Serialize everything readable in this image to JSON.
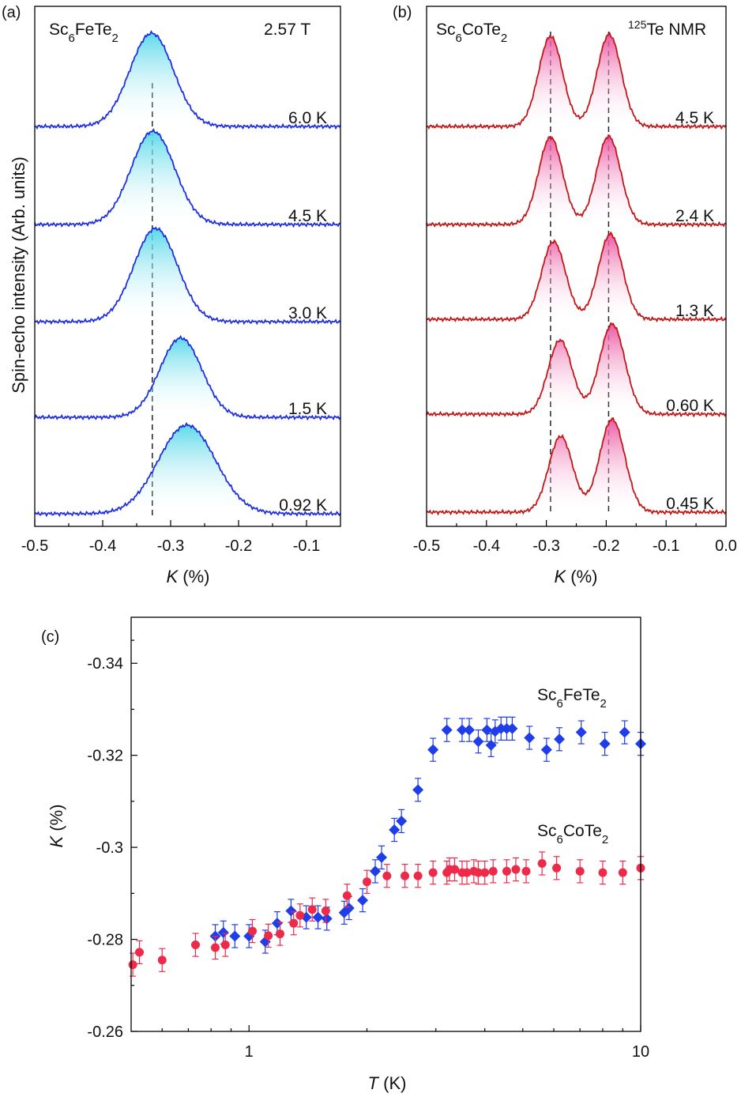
{
  "chart_data": [
    {
      "type": "line",
      "panel": "(a)",
      "sample": "Sc6FeTe2",
      "annotation": "2.57 T",
      "ylabel": "Spin-echo intensity (Arb. units)",
      "xlabel_var": "K",
      "xlabel_unit": " (%)",
      "xlim": [
        -0.5,
        -0.05
      ],
      "xticks": [
        -0.5,
        -0.4,
        -0.3,
        -0.2,
        -0.1
      ],
      "xtick_labels": [
        "-0.5",
        "-0.4",
        "-0.3",
        "-0.2",
        "-0.1"
      ],
      "dashed_lines": [
        -0.327
      ],
      "color": "#1f2fe0",
      "fill_color": "#5ee0ec",
      "spectra": [
        {
          "temperature": "6.0 K",
          "peaks": [
            {
              "center": -0.328,
              "width": 0.032,
              "height": 1.0
            }
          ]
        },
        {
          "temperature": "4.5 K",
          "peaks": [
            {
              "center": -0.326,
              "width": 0.032,
              "height": 1.0
            }
          ]
        },
        {
          "temperature": "3.0 K",
          "peaks": [
            {
              "center": -0.322,
              "width": 0.032,
              "height": 1.0
            }
          ]
        },
        {
          "temperature": "1.5 K",
          "peaks": [
            {
              "center": -0.285,
              "width": 0.031,
              "height": 0.85
            }
          ]
        },
        {
          "temperature": "0.92 K",
          "peaks": [
            {
              "center": -0.276,
              "width": 0.042,
              "height": 0.95
            }
          ]
        }
      ]
    },
    {
      "type": "line",
      "panel": "(b)",
      "sample": "Sc6CoTe2",
      "annotation_sup": "125",
      "annotation": "Te NMR",
      "xlabel_var": "K",
      "xlabel_unit": " (%)",
      "xlim": [
        -0.5,
        0.0
      ],
      "xticks": [
        -0.5,
        -0.4,
        -0.3,
        -0.2,
        -0.1,
        0.0
      ],
      "xtick_labels": [
        "-0.5",
        "-0.4",
        "-0.3",
        "-0.2",
        "-0.1",
        "0.0"
      ],
      "dashed_lines": [
        -0.293,
        -0.196
      ],
      "color": "#c01818",
      "fill_color": "#f060a8",
      "spectra": [
        {
          "temperature": "4.5 K",
          "peaks": [
            {
              "center": -0.293,
              "width": 0.02,
              "height": 0.95
            },
            {
              "center": -0.195,
              "width": 0.02,
              "height": 0.97
            }
          ]
        },
        {
          "temperature": "2.4 K",
          "peaks": [
            {
              "center": -0.293,
              "width": 0.02,
              "height": 0.92
            },
            {
              "center": -0.196,
              "width": 0.02,
              "height": 0.93
            }
          ]
        },
        {
          "temperature": "1.3 K",
          "peaks": [
            {
              "center": -0.288,
              "width": 0.02,
              "height": 0.82
            },
            {
              "center": -0.193,
              "width": 0.02,
              "height": 0.9
            }
          ]
        },
        {
          "temperature": "0.60 K",
          "peaks": [
            {
              "center": -0.277,
              "width": 0.02,
              "height": 0.78
            },
            {
              "center": -0.19,
              "width": 0.021,
              "height": 0.95
            }
          ]
        },
        {
          "temperature": "0.45 K",
          "peaks": [
            {
              "center": -0.276,
              "width": 0.02,
              "height": 0.8
            },
            {
              "center": -0.19,
              "width": 0.021,
              "height": 0.98
            }
          ]
        }
      ]
    },
    {
      "type": "scatter",
      "panel": "(c)",
      "xlabel_var": "T",
      "xlabel_unit": " (K)",
      "ylabel_var": "K",
      "ylabel_unit": " (%)",
      "xscale": "log",
      "xlim": [
        0.5,
        10
      ],
      "ylim": [
        -0.26,
        -0.35
      ],
      "yticks": [
        -0.26,
        -0.28,
        -0.3,
        -0.32,
        -0.34
      ],
      "ytick_labels": [
        "-0.26",
        "-0.28",
        "-0.3",
        "-0.32",
        "-0.34"
      ],
      "xticks": [
        1,
        10
      ],
      "xtick_labels": [
        "1",
        "10"
      ],
      "error": 0.0025,
      "series": [
        {
          "name": "Sc6FeTe2",
          "color": "#1f3de8",
          "marker": "diamond",
          "points": [
            [
              0.82,
              -0.2807
            ],
            [
              0.86,
              -0.2815
            ],
            [
              0.92,
              -0.2807
            ],
            [
              1.0,
              -0.2807
            ],
            [
              1.1,
              -0.2795
            ],
            [
              1.18,
              -0.2835
            ],
            [
              1.28,
              -0.2862
            ],
            [
              1.4,
              -0.2848
            ],
            [
              1.5,
              -0.2848
            ],
            [
              1.58,
              -0.2845
            ],
            [
              1.75,
              -0.2858
            ],
            [
              1.8,
              -0.2868
            ],
            [
              1.95,
              -0.2885
            ],
            [
              2.1,
              -0.2948
            ],
            [
              2.18,
              -0.2978
            ],
            [
              2.35,
              -0.3038
            ],
            [
              2.45,
              -0.3057
            ],
            [
              2.7,
              -0.3125
            ],
            [
              2.95,
              -0.3212
            ],
            [
              3.2,
              -0.3255
            ],
            [
              3.5,
              -0.3255
            ],
            [
              3.65,
              -0.3255
            ],
            [
              3.85,
              -0.323
            ],
            [
              4.05,
              -0.3255
            ],
            [
              4.15,
              -0.3222
            ],
            [
              4.25,
              -0.3252
            ],
            [
              4.4,
              -0.3258
            ],
            [
              4.55,
              -0.3258
            ],
            [
              4.7,
              -0.3258
            ],
            [
              5.2,
              -0.3238
            ],
            [
              5.75,
              -0.3212
            ],
            [
              6.2,
              -0.3235
            ],
            [
              7.05,
              -0.325
            ],
            [
              8.1,
              -0.3225
            ],
            [
              9.1,
              -0.325
            ],
            [
              10.0,
              -0.3225
            ]
          ]
        },
        {
          "name": "Sc6CoTe2",
          "color": "#ee2a4a",
          "marker": "circle",
          "points": [
            [
              0.505,
              -0.2745
            ],
            [
              0.525,
              -0.2772
            ],
            [
              0.6,
              -0.2755
            ],
            [
              0.73,
              -0.2788
            ],
            [
              0.82,
              -0.2782
            ],
            [
              0.87,
              -0.2788
            ],
            [
              1.02,
              -0.2818
            ],
            [
              1.12,
              -0.2808
            ],
            [
              1.2,
              -0.2812
            ],
            [
              1.3,
              -0.2835
            ],
            [
              1.35,
              -0.2852
            ],
            [
              1.45,
              -0.2865
            ],
            [
              1.57,
              -0.2862
            ],
            [
              1.78,
              -0.2895
            ],
            [
              2.0,
              -0.2925
            ],
            [
              2.25,
              -0.2938
            ],
            [
              2.5,
              -0.2938
            ],
            [
              2.7,
              -0.2938
            ],
            [
              2.95,
              -0.2945
            ],
            [
              3.2,
              -0.2945
            ],
            [
              3.25,
              -0.2952
            ],
            [
              3.35,
              -0.2952
            ],
            [
              3.5,
              -0.2945
            ],
            [
              3.6,
              -0.2945
            ],
            [
              3.75,
              -0.2948
            ],
            [
              3.85,
              -0.2945
            ],
            [
              4.0,
              -0.2945
            ],
            [
              4.2,
              -0.2948
            ],
            [
              4.55,
              -0.2948
            ],
            [
              4.8,
              -0.2952
            ],
            [
              5.1,
              -0.2948
            ],
            [
              5.6,
              -0.2965
            ],
            [
              6.1,
              -0.2955
            ],
            [
              7.0,
              -0.2948
            ],
            [
              8.0,
              -0.2945
            ],
            [
              9.0,
              -0.2945
            ],
            [
              10.0,
              -0.2955
            ]
          ]
        }
      ]
    }
  ]
}
